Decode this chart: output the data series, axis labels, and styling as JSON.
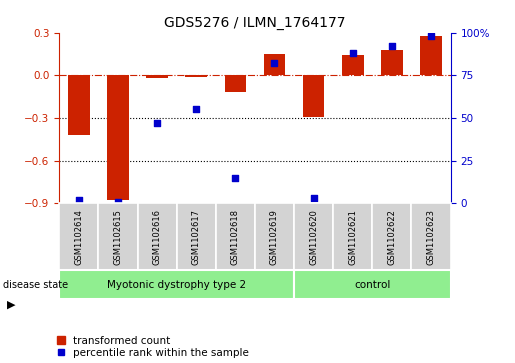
{
  "title": "GDS5276 / ILMN_1764177",
  "samples": [
    "GSM1102614",
    "GSM1102615",
    "GSM1102616",
    "GSM1102617",
    "GSM1102618",
    "GSM1102619",
    "GSM1102620",
    "GSM1102621",
    "GSM1102622",
    "GSM1102623"
  ],
  "red_values": [
    -0.42,
    -0.88,
    -0.02,
    -0.01,
    -0.12,
    0.15,
    -0.29,
    0.14,
    0.18,
    0.28
  ],
  "blue_values": [
    2,
    1,
    47,
    55,
    15,
    82,
    3,
    88,
    92,
    98
  ],
  "ylim_left": [
    -0.9,
    0.3
  ],
  "ylim_right": [
    0,
    100
  ],
  "yticks_left": [
    0.3,
    0.0,
    -0.3,
    -0.6,
    -0.9
  ],
  "yticks_right": [
    100,
    75,
    50,
    25,
    0
  ],
  "ytick_labels_right": [
    "100%",
    "75",
    "50",
    "25",
    "0"
  ],
  "hline_y": 0.0,
  "dotted_hlines": [
    -0.3,
    -0.6
  ],
  "group1_label": "Myotonic dystrophy type 2",
  "group2_label": "control",
  "group1_count": 6,
  "group2_count": 4,
  "disease_state_label": "disease state",
  "legend_red": "transformed count",
  "legend_blue": "percentile rank within the sample",
  "bar_color": "#cc2200",
  "dot_color": "#0000cc",
  "bar_width": 0.55,
  "group_bg_color": "#90ee90",
  "sample_bg_color": "#d3d3d3",
  "title_fontsize": 10,
  "tick_fontsize": 7.5,
  "sample_fontsize": 6,
  "group_fontsize": 7.5,
  "legend_fontsize": 7.5
}
